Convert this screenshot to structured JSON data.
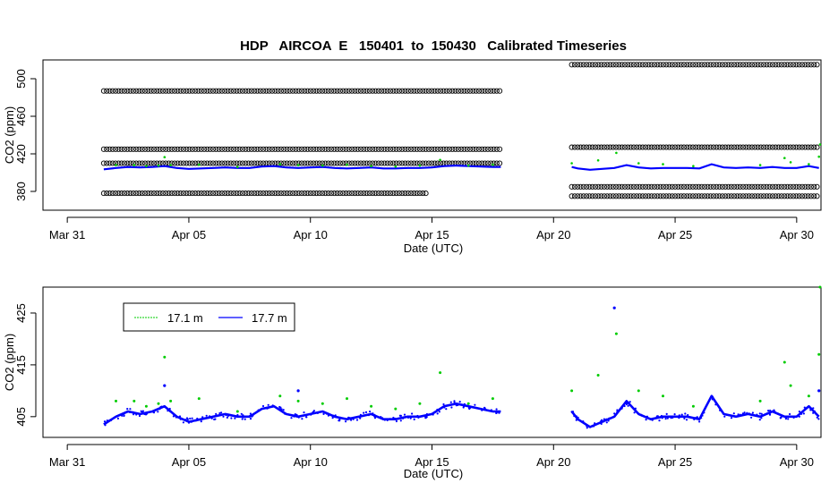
{
  "title": "HDP   AIRCOA  E   150401  to  150430   Calibrated Timeseries",
  "colors": {
    "green": "#00cc00",
    "blue": "#0000ff",
    "black": "#000000"
  },
  "chart_data": [
    {
      "type": "scatter",
      "xlabel": "Date (UTC)",
      "ylabel": "CO2 (ppm)",
      "xlim": [
        "2015-03-30",
        "2015-05-01"
      ],
      "ylim": [
        370,
        520
      ],
      "x_ticks": [
        "Mar 31",
        "Apr 05",
        "Apr 10",
        "Apr 15",
        "Apr 20",
        "Apr 25",
        "Apr 30"
      ],
      "y_ticks": [
        "380",
        "420",
        "460",
        "500"
      ],
      "series": [
        {
          "color": "black",
          "segments": [
            {
              "y": 487,
              "x_start": "2015-04-01T12:00",
              "x_end": "2015-04-17T20:00"
            },
            {
              "y": 425,
              "x_start": "2015-04-01T12:00",
              "x_end": "2015-04-17T20:00"
            },
            {
              "y": 410,
              "x_start": "2015-04-01T12:00",
              "x_end": "2015-04-17T20:00"
            },
            {
              "y": 378,
              "x_start": "2015-04-01T12:00",
              "x_end": "2015-04-14T20:00"
            },
            {
              "y": 515,
              "x_start": "2015-04-20T18:00",
              "x_end": "2015-04-30T22:00"
            },
            {
              "y": 427,
              "x_start": "2015-04-20T18:00",
              "x_end": "2015-04-30T22:00"
            },
            {
              "y": 385,
              "x_start": "2015-04-20T18:00",
              "x_end": "2015-04-30T22:00"
            },
            {
              "y": 375,
              "x_start": "2015-04-20T18:00",
              "x_end": "2015-04-30T22:00"
            }
          ]
        }
      ]
    },
    {
      "type": "scatter",
      "xlabel": "Date (UTC)",
      "ylabel": "CO2 (ppm)",
      "xlim": [
        "2015-03-30",
        "2015-05-01"
      ],
      "ylim": [
        402,
        430
      ],
      "x_ticks": [
        "Mar 31",
        "Apr 05",
        "Apr 10",
        "Apr 15",
        "Apr 20",
        "Apr 25",
        "Apr 30"
      ],
      "y_ticks": [
        "405",
        "415",
        "425"
      ],
      "legend": {
        "position": "top-left",
        "entries": [
          {
            "label": "17.1 m",
            "color": "green"
          },
          {
            "label": "17.7 m",
            "color": "blue"
          }
        ]
      },
      "series": [
        {
          "name": "17.7 m",
          "color": "blue",
          "x": [
            "2015-04-01T12:00",
            "2015-04-02T00:00",
            "2015-04-02T12:00",
            "2015-04-03T00:00",
            "2015-04-03T12:00",
            "2015-04-04T00:00",
            "2015-04-04T12:00",
            "2015-04-05T00:00",
            "2015-04-05T12:00",
            "2015-04-06T00:00",
            "2015-04-06T12:00",
            "2015-04-07T00:00",
            "2015-04-07T12:00",
            "2015-04-08T00:00",
            "2015-04-08T12:00",
            "2015-04-09T00:00",
            "2015-04-09T12:00",
            "2015-04-10T00:00",
            "2015-04-10T12:00",
            "2015-04-11T00:00",
            "2015-04-11T12:00",
            "2015-04-12T00:00",
            "2015-04-12T12:00",
            "2015-04-13T00:00",
            "2015-04-13T12:00",
            "2015-04-14T00:00",
            "2015-04-14T12:00",
            "2015-04-15T00:00",
            "2015-04-15T12:00",
            "2015-04-16T00:00",
            "2015-04-16T12:00",
            "2015-04-17T00:00",
            "2015-04-17T12:00",
            "2015-04-17T20:00",
            "2015-04-20T18:00",
            "2015-04-21T00:00",
            "2015-04-21T12:00",
            "2015-04-22T00:00",
            "2015-04-22T12:00",
            "2015-04-23T00:00",
            "2015-04-23T12:00",
            "2015-04-24T00:00",
            "2015-04-24T12:00",
            "2015-04-25T00:00",
            "2015-04-25T12:00",
            "2015-04-26T00:00",
            "2015-04-26T12:00",
            "2015-04-27T00:00",
            "2015-04-27T12:00",
            "2015-04-28T00:00",
            "2015-04-28T12:00",
            "2015-04-29T00:00",
            "2015-04-29T12:00",
            "2015-04-30T00:00",
            "2015-04-30T12:00",
            "2015-04-30T22:00"
          ],
          "values": [
            403.5,
            405,
            406,
            405.5,
            406,
            407,
            405,
            404,
            404.5,
            405,
            405.5,
            405,
            405,
            406.5,
            407,
            405.5,
            405,
            405.5,
            406,
            405,
            404.5,
            405,
            405.5,
            404.5,
            404.5,
            405,
            405,
            405.5,
            407,
            407.5,
            407,
            406.5,
            406,
            406,
            406,
            404.5,
            403,
            404,
            405,
            408,
            405.5,
            404.5,
            405,
            405,
            405,
            404.5,
            409,
            405.5,
            405,
            405.5,
            405,
            406,
            405,
            405,
            407,
            405
          ]
        },
        {
          "name": "17.1 m",
          "color": "green",
          "x": [
            "2015-04-02T00:00",
            "2015-04-02T18:00",
            "2015-04-03T06:00",
            "2015-04-03T18:00",
            "2015-04-04T00:00",
            "2015-04-04T06:00",
            "2015-04-05T10:00",
            "2015-04-07T00:00",
            "2015-04-08T18:00",
            "2015-04-09T12:00",
            "2015-04-10T12:00",
            "2015-04-11T12:00",
            "2015-04-12T12:00",
            "2015-04-13T12:00",
            "2015-04-14T12:00",
            "2015-04-15T08:00",
            "2015-04-16T12:00",
            "2015-04-17T12:00",
            "2015-04-20T18:00",
            "2015-04-21T20:00",
            "2015-04-22T14:00",
            "2015-04-23T12:00",
            "2015-04-24T12:00",
            "2015-04-25T18:00",
            "2015-04-28T12:00",
            "2015-04-29T12:00",
            "2015-04-29T18:00",
            "2015-04-30T12:00",
            "2015-04-30T22:00",
            "2015-04-30T23:00"
          ],
          "values": [
            408,
            408,
            407,
            407.5,
            416.5,
            408,
            408.5,
            406,
            409,
            408,
            407.5,
            408.5,
            407,
            406.5,
            407.5,
            413.5,
            407.5,
            408.5,
            410,
            413,
            421,
            410,
            409,
            407,
            408,
            415.5,
            411,
            409,
            417,
            430
          ]
        }
      ]
    }
  ]
}
